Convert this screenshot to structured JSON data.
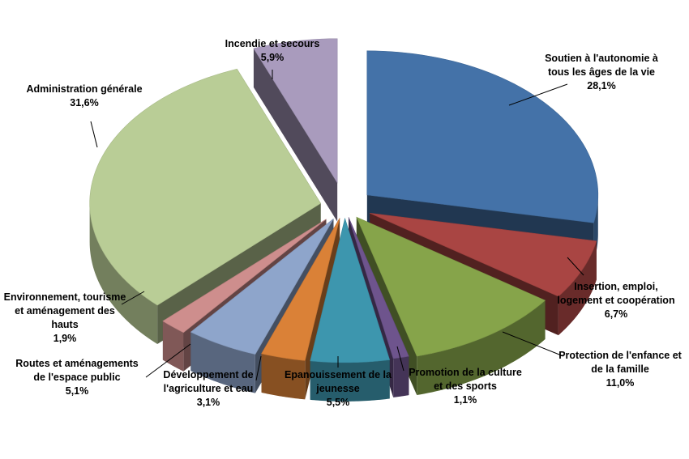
{
  "chart_data": {
    "type": "pie",
    "style": "3d-exploded",
    "legend": "none",
    "start_angle_deg": 90,
    "series": [
      {
        "values": [
          28.1,
          6.7,
          11.0,
          1.1,
          5.5,
          3.1,
          5.1,
          1.9,
          31.6,
          5.9
        ],
        "categories": [
          "Soutien à l'autonomie à tous les âges de la vie",
          "Insertion, emploi, logement et coopération",
          "Protection de l'enfance et de la famille",
          "Promotion de la culture et des sports",
          "Epanouissement de la jeunesse",
          "Développement de l'agriculture et eau",
          "Routes et aménagements de l'espace public",
          "Environnement, tourisme et aménagement des hauts",
          "Administration générale",
          "Incendie et secours"
        ]
      }
    ],
    "slices": [
      {
        "label_lines": [
          "Soutien à l'autonomie à",
          "tous les âges de la vie"
        ],
        "value_label": "28,1%",
        "value": 28.1,
        "color": "#4472A8"
      },
      {
        "label_lines": [
          "Insertion, emploi,",
          "logement et coopération"
        ],
        "value_label": "6,7%",
        "value": 6.7,
        "color": "#A94543"
      },
      {
        "label_lines": [
          "Protection de l'enfance et",
          "de la famille"
        ],
        "value_label": "11,0%",
        "value": 11.0,
        "color": "#86A44A"
      },
      {
        "label_lines": [
          "Promotion de la culture",
          "et des sports"
        ],
        "value_label": "1,1%",
        "value": 1.1,
        "color": "#6E548D"
      },
      {
        "label_lines": [
          "Epanouissement de la",
          "jeunesse"
        ],
        "value_label": "5,5%",
        "value": 5.5,
        "color": "#3D96AE"
      },
      {
        "label_lines": [
          "Développement de",
          "l'agriculture et eau"
        ],
        "value_label": "3,1%",
        "value": 3.1,
        "color": "#DA8137"
      },
      {
        "label_lines": [
          "Routes et aménagements",
          "de l'espace public"
        ],
        "value_label": "5,1%",
        "value": 5.1,
        "color": "#8EA5CB"
      },
      {
        "label_lines": [
          "Environnement, tourisme",
          "et aménagement des",
          "hauts"
        ],
        "value_label": "1,9%",
        "value": 1.9,
        "color": "#CE8E8D"
      },
      {
        "label_lines": [
          "Administration générale"
        ],
        "value_label": "31,6%",
        "value": 31.6,
        "color": "#B9CD96"
      },
      {
        "label_lines": [
          "Incendie et secours"
        ],
        "value_label": "5,9%",
        "value": 5.9,
        "color": "#A99BBD"
      }
    ]
  }
}
